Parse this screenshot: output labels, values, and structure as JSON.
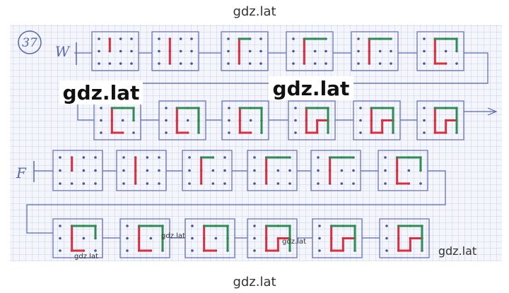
{
  "labels": {
    "number": "37",
    "row1": "W",
    "row2": "F"
  },
  "watermarks": [
    "gdz.lat",
    "gdz.lat",
    "gdz.lat",
    "gdz.lat",
    "gdz.lat",
    "gdz.lat",
    "gdz.lat",
    "gdz.lat"
  ]
}
